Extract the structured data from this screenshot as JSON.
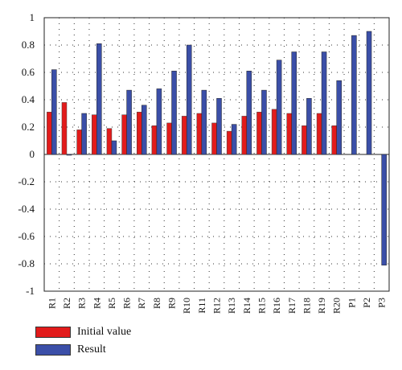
{
  "chart_data": {
    "type": "bar",
    "categories": [
      "R1",
      "R2",
      "R3",
      "R4",
      "R5",
      "R6",
      "R7",
      "R8",
      "R9",
      "R10",
      "R11",
      "R12",
      "R13",
      "R14",
      "R15",
      "R16",
      "R17",
      "R18",
      "R19",
      "R20",
      "P1",
      "P2",
      "P3"
    ],
    "series": [
      {
        "name": "Initial value",
        "color": "#e21b1b",
        "values": [
          0.31,
          0.38,
          0.18,
          0.29,
          0.19,
          0.29,
          0.31,
          0.21,
          0.23,
          0.28,
          0.3,
          0.23,
          0.17,
          0.28,
          0.31,
          0.33,
          0.3,
          0.21,
          0.3,
          0.21,
          null,
          null,
          null
        ]
      },
      {
        "name": "Result",
        "color": "#3b4fa8",
        "values": [
          0.62,
          0.0,
          0.3,
          0.81,
          0.1,
          0.47,
          0.36,
          0.48,
          0.61,
          0.8,
          0.47,
          0.41,
          0.22,
          0.61,
          0.47,
          0.69,
          0.75,
          0.41,
          0.75,
          0.54,
          0.87,
          0.9,
          -0.81
        ]
      }
    ],
    "yticks": [
      "1",
      "0.8",
      "0.6",
      "0.4",
      "0.2",
      "0",
      "-0.2",
      "-0.4",
      "-0.6",
      "-0.8",
      "-1"
    ],
    "ylim": [
      -1,
      1
    ],
    "grid": "dotted",
    "legend": "bottom-left"
  },
  "legend": {
    "items": [
      {
        "label": "Initial value",
        "color": "#e21b1b"
      },
      {
        "label": "Result",
        "color": "#3b4fa8"
      }
    ]
  }
}
